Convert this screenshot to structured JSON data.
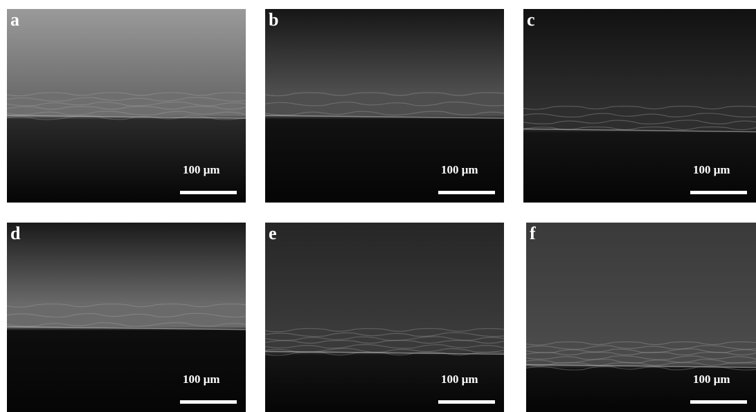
{
  "panels": [
    {
      "label": "a",
      "scale_bar": "100 μm"
    },
    {
      "label": "b",
      "scale_bar": "100 μm"
    },
    {
      "label": "c",
      "scale_bar": "100 μm"
    },
    {
      "label": "d",
      "scale_bar": "100 μm"
    },
    {
      "label": "e",
      "scale_bar": "100 μm"
    },
    {
      "label": "f",
      "scale_bar": "100 μm"
    }
  ]
}
